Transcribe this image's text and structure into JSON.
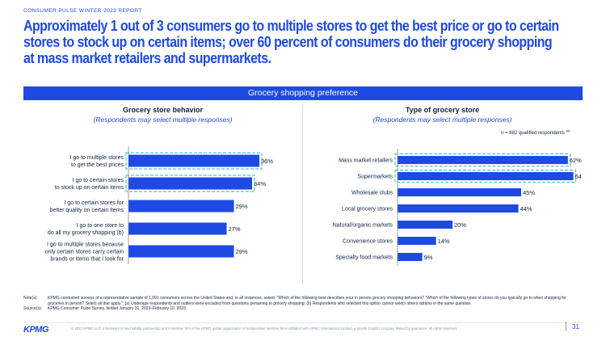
{
  "header": {
    "report": "CONSUMER PULSE WINTER 2023 REPORT",
    "headline": [
      "Approximately 1 out of 3 consumers go to multiple stores to get the best price or go to certain",
      "stores to stock up on certain items; over 60 percent of consumers do their grocery shopping",
      "at mass market retailers and supermarkets."
    ]
  },
  "banner": "Grocery shopping preference",
  "left_panel": {
    "title": "Grocery store behavior",
    "subtitle": "(Respondents may select multiple responses)"
  },
  "right_panel": {
    "title": "Type of grocery store",
    "subtitle": "(Respondents may select multiple responses)",
    "qualified_note": "n = 882 qualified respondents",
    "qualified_note_sup": "(a)"
  },
  "colors": {
    "brand": "#1e49e2",
    "bar": "#1e49e2",
    "highlight_outline": "#4fc3d9",
    "text_dark": "#0c233c"
  },
  "chart_data": [
    {
      "type": "bar",
      "orientation": "horizontal",
      "categories": [
        [
          "I go to multiple stores",
          "to get the best prices"
        ],
        [
          "I go to certain stores",
          "to stock up on certain items"
        ],
        [
          "I go to certain stores for",
          "better quality on certain items"
        ],
        [
          "I go to one store to",
          "do all my grocery shopping (b)"
        ],
        [
          "I go to multiple stores because",
          "only certain stores carry certain",
          "brands or items that I look for"
        ]
      ],
      "values": [
        36,
        34,
        29,
        27,
        29
      ],
      "value_labels": [
        "36%",
        "34%",
        "29%",
        "27%",
        "29%"
      ],
      "highlighted": [
        true,
        true,
        false,
        false,
        false
      ],
      "xlim": [
        0,
        40
      ],
      "title": "Grocery store behavior",
      "xlabel": "",
      "ylabel": ""
    },
    {
      "type": "bar",
      "orientation": "horizontal",
      "categories": [
        "Mass market retailers",
        "Supermarkets",
        "Wholesale clubs",
        "Local grocery stores",
        "Natural/organic markets",
        "Convenience stores",
        "Specialty food markets"
      ],
      "values": [
        62,
        64,
        45,
        44,
        20,
        14,
        9
      ],
      "value_labels": [
        "62%",
        "64%",
        "45%",
        "44%",
        "20%",
        "14%",
        "9%"
      ],
      "highlighted": [
        true,
        true,
        false,
        false,
        false,
        false,
        false
      ],
      "xlim": [
        0,
        70
      ],
      "title": "Type of grocery store",
      "xlabel": "",
      "ylabel": ""
    }
  ],
  "notes": {
    "notes_label": "Note(s):",
    "notes_text": "KPMG conducted surveys of a representative sample of 1,091 consumers across the United States and, in all instances, asked, “Which of the following best describes your in person grocery shopping behaviors? “Which of the following types of stores do you typically go to when shopping for groceries in person? Select all that apply.”; (a) Underage respondents and outliers were excluded from questions pertaining to grocery shopping; (b) Respondents who selected this option cannot select others options in the same question.",
    "source_label": "Source(s):",
    "source_text": "KPMG Consumer Pulse Survey, fielded January 31, 2023–February 10, 2023"
  },
  "footer": {
    "logo": "KPMG",
    "copyright": "© 2023 KPMG LLP, a Delaware limited liability partnership and a member firm of the KPMG global organization of independent member firms affiliated with KPMG International Limited, a private English company limited by guarantee. All rights reserved.",
    "page_number": "31"
  }
}
